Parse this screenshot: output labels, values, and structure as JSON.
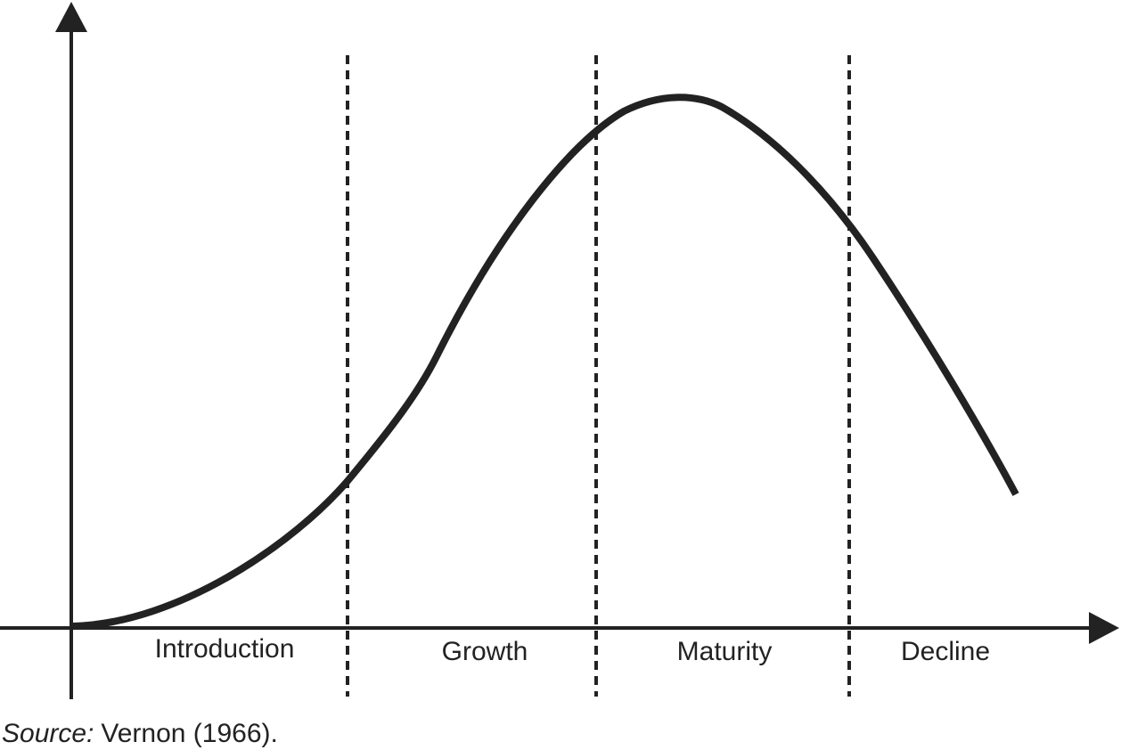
{
  "stages": [
    "Introduction",
    "Growth",
    "Maturity",
    "Decline"
  ],
  "source": {
    "label": "Source:",
    "text": "Vernon (1966)."
  }
}
